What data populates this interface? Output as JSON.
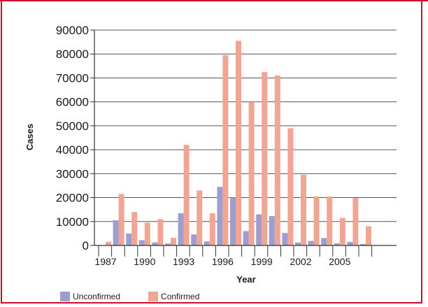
{
  "chart_data": {
    "type": "bar",
    "xlabel": "Year",
    "ylabel": "Cases",
    "ylim": [
      0,
      90000
    ],
    "yticks": [
      0,
      10000,
      20000,
      30000,
      40000,
      50000,
      60000,
      70000,
      80000,
      90000
    ],
    "grid": true,
    "legend_position": "bottom-left",
    "categories": [
      1987,
      1988,
      1989,
      1990,
      1991,
      1992,
      1993,
      1994,
      1995,
      1996,
      1997,
      1998,
      1999,
      2000,
      2001,
      2002,
      2003,
      2004,
      2005,
      2006,
      2007
    ],
    "x_tick_labels": [
      "1987",
      "1990",
      "1993",
      "1996",
      "1999",
      "2002",
      "2005"
    ],
    "series": [
      {
        "name": "Unconfirmed",
        "color": "#9d9dcf",
        "values": [
          0,
          10500,
          5000,
          2200,
          1300,
          800,
          13500,
          4600,
          1700,
          24500,
          20000,
          6000,
          13000,
          12300,
          5200,
          1200,
          1900,
          3100,
          900,
          1500,
          600
        ]
      },
      {
        "name": "Confirmed",
        "color": "#f1a593",
        "values": [
          1500,
          21500,
          14000,
          9500,
          11000,
          3200,
          42000,
          23000,
          13500,
          79500,
          85500,
          60000,
          72500,
          71000,
          49000,
          29500,
          20500,
          20500,
          11500,
          19800,
          8000
        ]
      }
    ]
  }
}
